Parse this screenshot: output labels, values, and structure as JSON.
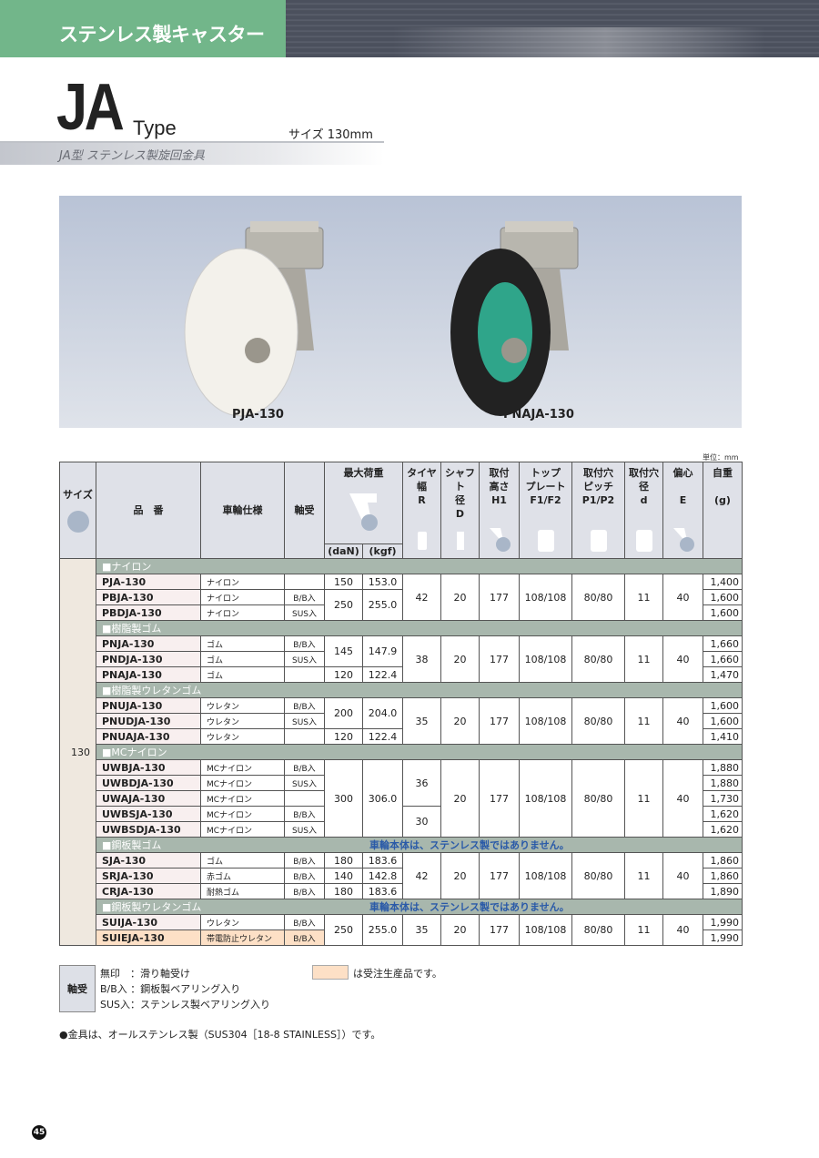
{
  "header": {
    "category_title": "ステンレス製キャスター"
  },
  "series": {
    "name": "JA",
    "type_label": "Type",
    "size_label": "サイズ 130mm",
    "subtitle": "JA型 ステンレス製旋回金具"
  },
  "photos": [
    {
      "caption": "PJA-130",
      "wheel_color": "#f4f2ec",
      "hub_color": "#f4f2ec"
    },
    {
      "caption": "PNAJA-130",
      "wheel_color": "#222222",
      "hub_color": "#2fa58a"
    }
  ],
  "table": {
    "unit": "単位：mm",
    "headers": {
      "size": "サイズ",
      "model": "品　番",
      "wheel": "車輪仕様",
      "bearing": "軸受",
      "max_load": "最大荷重",
      "daN": "(daN)",
      "kgf": "(kgf)",
      "R": "タイヤ\n幅\nR",
      "D": "シャフト\n径\nD",
      "H1": "取付\n高さ\nH1",
      "F": "トップ\nプレート\nF1/F2",
      "P": "取付穴\nピッチ\nP1/P2",
      "d": "取付穴\n径\nd",
      "E": "偏心\n\nE",
      "weight": "自重\n\n(g)"
    },
    "size_value": "130",
    "groups": [
      {
        "label": "■ナイロン",
        "note": "",
        "rows": [
          {
            "model": "PJA-130",
            "wheel": "ナイロン",
            "bearing": "",
            "daN": "150",
            "kgf": "153.0",
            "R": "42",
            "D": "20",
            "H1": "177",
            "F": "108/108",
            "P": "80/80",
            "d": "11",
            "E": "40",
            "weight": "1,400"
          },
          {
            "model": "PBJA-130",
            "wheel": "ナイロン",
            "bearing": "B/B入",
            "daN": "250",
            "kgf": "255.0",
            "R": "42",
            "D": "20",
            "H1": "177",
            "F": "108/108",
            "P": "80/80",
            "d": "11",
            "E": "40",
            "weight": "1,600"
          },
          {
            "model": "PBDJA-130",
            "wheel": "ナイロン",
            "bearing": "SUS入",
            "daN": "250",
            "kgf": "255.0",
            "R": "42",
            "D": "20",
            "H1": "177",
            "F": "108/108",
            "P": "80/80",
            "d": "11",
            "E": "40",
            "weight": "1,600"
          }
        ]
      },
      {
        "label": "■樹脂製ゴム",
        "note": "",
        "rows": [
          {
            "model": "PNJA-130",
            "wheel": "ゴム",
            "bearing": "B/B入",
            "daN": "145",
            "kgf": "147.9",
            "R": "38",
            "D": "20",
            "H1": "177",
            "F": "108/108",
            "P": "80/80",
            "d": "11",
            "E": "40",
            "weight": "1,660"
          },
          {
            "model": "PNDJA-130",
            "wheel": "ゴム",
            "bearing": "SUS入",
            "daN": "145",
            "kgf": "147.9",
            "R": "38",
            "D": "20",
            "H1": "177",
            "F": "108/108",
            "P": "80/80",
            "d": "11",
            "E": "40",
            "weight": "1,660"
          },
          {
            "model": "PNAJA-130",
            "wheel": "ゴム",
            "bearing": "",
            "daN": "120",
            "kgf": "122.4",
            "R": "38",
            "D": "20",
            "H1": "177",
            "F": "108/108",
            "P": "80/80",
            "d": "11",
            "E": "40",
            "weight": "1,470"
          }
        ]
      },
      {
        "label": "■樹脂製ウレタンゴム",
        "note": "",
        "rows": [
          {
            "model": "PNUJA-130",
            "wheel": "ウレタン",
            "bearing": "B/B入",
            "daN": "200",
            "kgf": "204.0",
            "R": "35",
            "D": "20",
            "H1": "177",
            "F": "108/108",
            "P": "80/80",
            "d": "11",
            "E": "40",
            "weight": "1,600"
          },
          {
            "model": "PNUDJA-130",
            "wheel": "ウレタン",
            "bearing": "SUS入",
            "daN": "200",
            "kgf": "204.0",
            "R": "35",
            "D": "20",
            "H1": "177",
            "F": "108/108",
            "P": "80/80",
            "d": "11",
            "E": "40",
            "weight": "1,600"
          },
          {
            "model": "PNUAJA-130",
            "wheel": "ウレタン",
            "bearing": "",
            "daN": "120",
            "kgf": "122.4",
            "R": "35",
            "D": "20",
            "H1": "177",
            "F": "108/108",
            "P": "80/80",
            "d": "11",
            "E": "40",
            "weight": "1,410"
          }
        ]
      },
      {
        "label": "■MCナイロン",
        "note": "",
        "rows": [
          {
            "model": "UWBJA-130",
            "wheel": "MCナイロン",
            "bearing": "B/B入",
            "daN": "300",
            "kgf": "306.0",
            "R": "36",
            "D": "20",
            "H1": "177",
            "F": "108/108",
            "P": "80/80",
            "d": "11",
            "E": "40",
            "weight": "1,880"
          },
          {
            "model": "UWBDJA-130",
            "wheel": "MCナイロン",
            "bearing": "SUS入",
            "daN": "300",
            "kgf": "306.0",
            "R": "36",
            "D": "20",
            "H1": "177",
            "F": "108/108",
            "P": "80/80",
            "d": "11",
            "E": "40",
            "weight": "1,880"
          },
          {
            "model": "UWAJA-130",
            "wheel": "MCナイロン",
            "bearing": "",
            "daN": "300",
            "kgf": "306.0",
            "R": "36",
            "D": "20",
            "H1": "177",
            "F": "108/108",
            "P": "80/80",
            "d": "11",
            "E": "40",
            "weight": "1,730"
          },
          {
            "model": "UWBSJA-130",
            "wheel": "MCナイロン",
            "bearing": "B/B入",
            "daN": "300",
            "kgf": "306.0",
            "R": "30",
            "D": "20",
            "H1": "177",
            "F": "108/108",
            "P": "80/80",
            "d": "11",
            "E": "40",
            "weight": "1,620"
          },
          {
            "model": "UWBSDJA-130",
            "wheel": "MCナイロン",
            "bearing": "SUS入",
            "daN": "300",
            "kgf": "306.0",
            "R": "30",
            "D": "20",
            "H1": "177",
            "F": "108/108",
            "P": "80/80",
            "d": "11",
            "E": "40",
            "weight": "1,620"
          }
        ]
      },
      {
        "label": "■鋼板製ゴム",
        "note": "車輪本体は、ステンレス製ではありません。",
        "rows": [
          {
            "model": "SJA-130",
            "wheel": "ゴム",
            "bearing": "B/B入",
            "daN": "180",
            "kgf": "183.6",
            "R": "42",
            "D": "20",
            "H1": "177",
            "F": "108/108",
            "P": "80/80",
            "d": "11",
            "E": "40",
            "weight": "1,860"
          },
          {
            "model": "SRJA-130",
            "wheel": "赤ゴム",
            "bearing": "B/B入",
            "daN": "140",
            "kgf": "142.8",
            "R": "42",
            "D": "20",
            "H1": "177",
            "F": "108/108",
            "P": "80/80",
            "d": "11",
            "E": "40",
            "weight": "1,860"
          },
          {
            "model": "CRJA-130",
            "wheel": "耐熱ゴム",
            "bearing": "B/B入",
            "daN": "180",
            "kgf": "183.6",
            "R": "42",
            "D": "20",
            "H1": "177",
            "F": "108/108",
            "P": "80/80",
            "d": "11",
            "E": "40",
            "weight": "1,890"
          }
        ]
      },
      {
        "label": "■鋼板製ウレタンゴム",
        "note": "車輪本体は、ステンレス製ではありません。",
        "rows": [
          {
            "model": "SUIJA-130",
            "wheel": "ウレタン",
            "bearing": "B/B入",
            "daN": "250",
            "kgf": "255.0",
            "R": "35",
            "D": "20",
            "H1": "177",
            "F": "108/108",
            "P": "80/80",
            "d": "11",
            "E": "40",
            "weight": "1,990"
          },
          {
            "model": "SUIEJA-130",
            "wheel": "帯電防止ウレタン",
            "bearing": "B/B入",
            "daN": "250",
            "kgf": "255.0",
            "R": "35",
            "D": "20",
            "H1": "177",
            "F": "108/108",
            "P": "80/80",
            "d": "11",
            "E": "40",
            "weight": "1,990",
            "made_to_order": true
          }
        ]
      }
    ]
  },
  "legend": {
    "title": "軸受",
    "lines": [
      "無印　：滑り軸受け",
      "B/B入 ：鋼板製ベアリング入り",
      "SUS入：ステンレス製ベアリング入り"
    ],
    "made_to_order": "は受注生産品です。",
    "made_to_order_color": "#fde0c6"
  },
  "footnote": "●金具は、オールステンレス製（SUS304［18-8 STAINLESS］）です。",
  "page_number": "45"
}
